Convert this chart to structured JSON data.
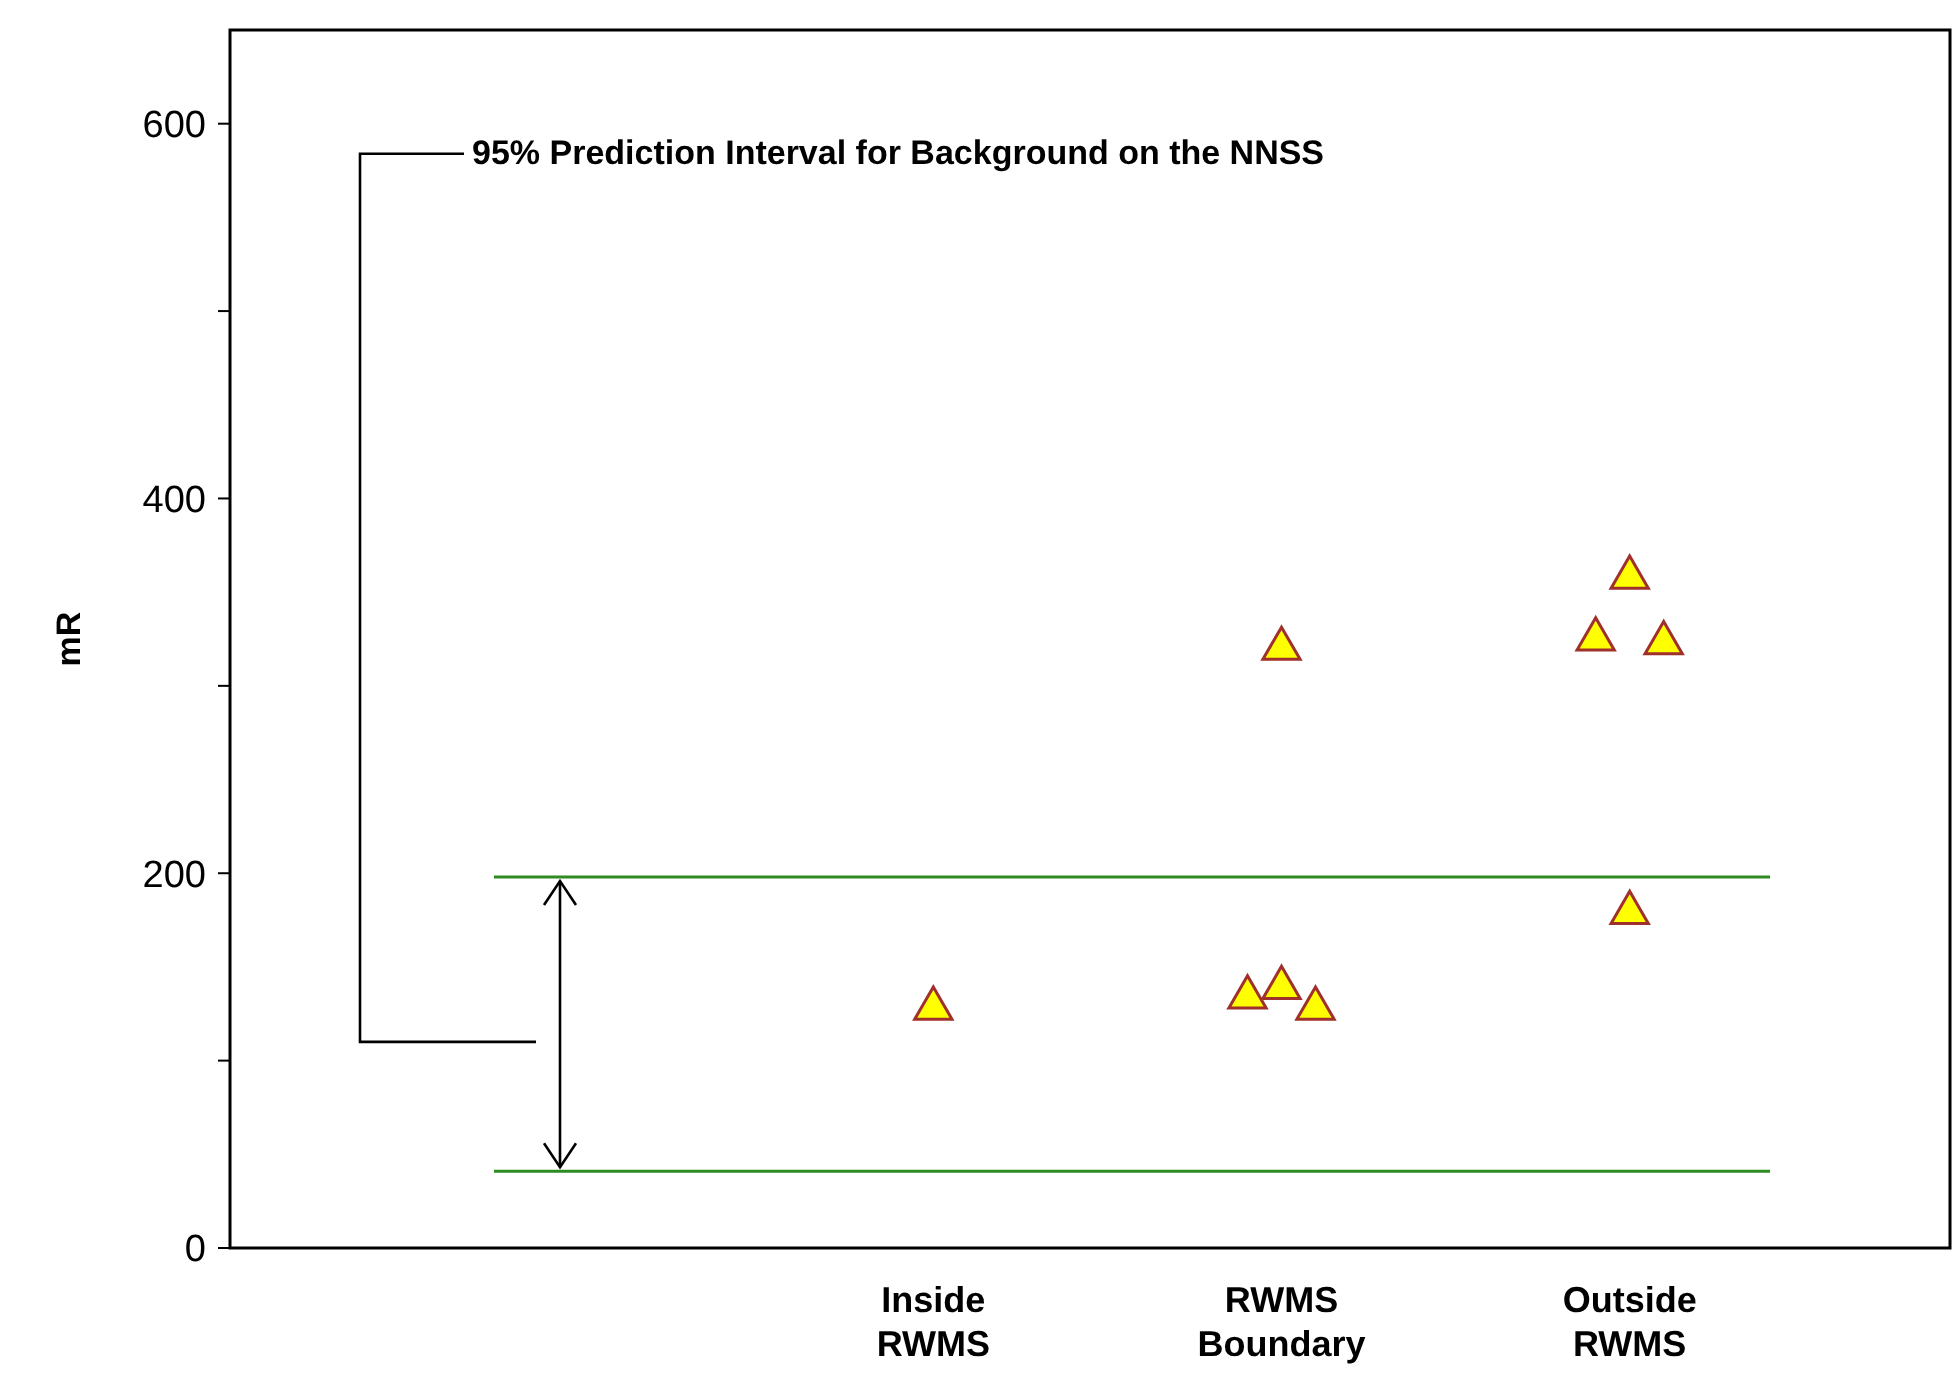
{
  "chart_data": {
    "type": "scatter",
    "ylabel": "mR",
    "categories": [
      null,
      null,
      "Inside RWMS",
      "RWMS Boundary",
      "Outside RWMS"
    ],
    "ylim": [
      0,
      650
    ],
    "yticks": [
      0,
      {
        "value": 100,
        "label": null
      },
      200,
      {
        "value": 300,
        "label": null
      },
      400,
      {
        "value": 500,
        "label": null
      },
      600
    ],
    "marker": "triangle",
    "grid": false,
    "series": [
      {
        "color": "#ffff00",
        "x": [
          "RWMS Boundary",
          "Outside RWMS"
        ],
        "values": [
          136,
          327
        ]
      },
      {
        "color": "#ffff00",
        "x": [
          "Inside RWMS",
          "RWMS Boundary",
          "RWMS Boundary",
          "Outside RWMS",
          "Outside RWMS"
        ],
        "values": [
          130,
          141,
          322,
          360,
          181
        ]
      },
      {
        "color": "#ffff00",
        "x": [
          "RWMS Boundary",
          "Outside RWMS"
        ],
        "values": [
          130,
          325
        ]
      }
    ],
    "ref_lines": [
      {
        "axis": "y",
        "value": 198,
        "color": "#2e8b22"
      },
      {
        "axis": "y",
        "value": 41,
        "color": "#2e8b22"
      }
    ],
    "annotations": [
      "95% Prediction Interval for Background on the NNSS"
    ]
  }
}
